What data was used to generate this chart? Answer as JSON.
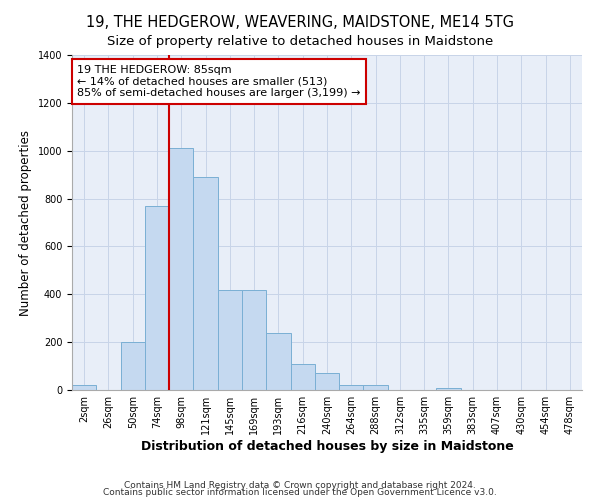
{
  "title": "19, THE HEDGEROW, WEAVERING, MAIDSTONE, ME14 5TG",
  "subtitle": "Size of property relative to detached houses in Maidstone",
  "xlabel": "Distribution of detached houses by size in Maidstone",
  "ylabel": "Number of detached properties",
  "footnote1": "Contains HM Land Registry data © Crown copyright and database right 2024.",
  "footnote2": "Contains public sector information licensed under the Open Government Licence v3.0.",
  "bar_labels": [
    "2sqm",
    "26sqm",
    "50sqm",
    "74sqm",
    "98sqm",
    "121sqm",
    "145sqm",
    "169sqm",
    "193sqm",
    "216sqm",
    "240sqm",
    "264sqm",
    "288sqm",
    "312sqm",
    "335sqm",
    "359sqm",
    "383sqm",
    "407sqm",
    "430sqm",
    "454sqm",
    "478sqm"
  ],
  "bar_values": [
    20,
    0,
    200,
    770,
    1010,
    890,
    420,
    420,
    240,
    110,
    70,
    20,
    20,
    0,
    0,
    10,
    0,
    0,
    0,
    0,
    0
  ],
  "bar_color": "#c5d9f0",
  "bar_edge_color": "#7aafd4",
  "grid_color": "#c8d4e8",
  "background_color": "#e8eef8",
  "vline_color": "#cc0000",
  "vline_position": 4.0,
  "annotation_text": "19 THE HEDGEROW: 85sqm\n← 14% of detached houses are smaller (513)\n85% of semi-detached houses are larger (3,199) →",
  "annotation_box_color": "#cc0000",
  "ylim": [
    0,
    1400
  ],
  "yticks": [
    0,
    200,
    400,
    600,
    800,
    1000,
    1200,
    1400
  ],
  "title_fontsize": 10.5,
  "subtitle_fontsize": 9.5,
  "xlabel_fontsize": 9,
  "ylabel_fontsize": 8.5,
  "tick_fontsize": 7,
  "footnote_fontsize": 6.5
}
